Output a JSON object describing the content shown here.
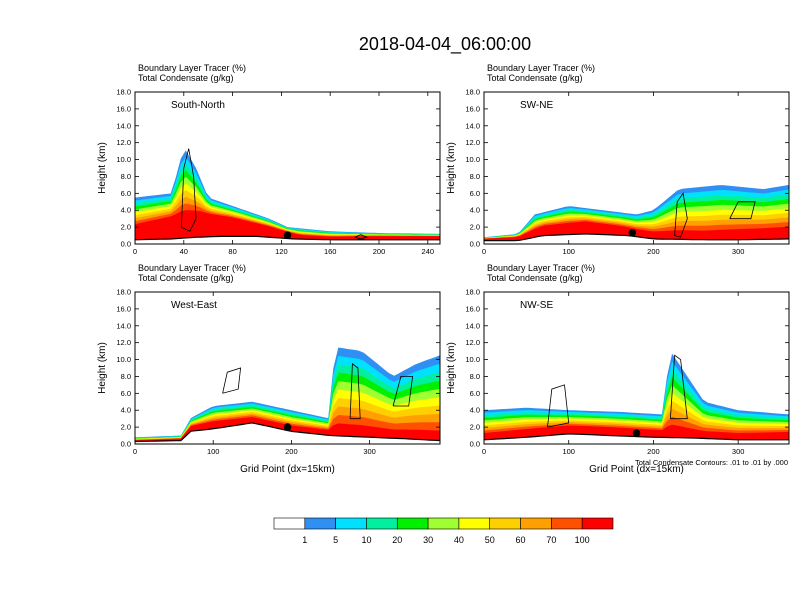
{
  "figure": {
    "title": "2018-04-04_06:00:00",
    "contour_note": "Total Condensate Contours: .01 to .01 by .000"
  },
  "colorbar": {
    "colors": [
      "#ffffff",
      "#2f8ff3",
      "#00e0ff",
      "#00f0a0",
      "#00f000",
      "#a0ff30",
      "#ffff00",
      "#ffd000",
      "#ffa000",
      "#ff5000",
      "#ff0000"
    ],
    "labels": [
      "1",
      "5",
      "10",
      "20",
      "30",
      "40",
      "50",
      "60",
      "70",
      "100"
    ]
  },
  "chart_data": [
    {
      "type": "heatmap",
      "name": "South-North",
      "label_line1": "Boundary Layer Tracer   (%)",
      "label_line2": "Total Condensate   (g/kg)",
      "ylabel": "Height (km)",
      "xlabel": "",
      "xlim": [
        0,
        250
      ],
      "ylim": [
        0,
        18
      ],
      "xticks": [
        0,
        40,
        80,
        120,
        160,
        200,
        240
      ],
      "yticks": [
        "0.0",
        "2.0",
        "4.0",
        "6.0",
        "8.0",
        "10.0",
        "12.0",
        "14.0",
        "16.0",
        "18.0"
      ],
      "marker_x": 125,
      "terrain": [
        [
          0,
          0.5
        ],
        [
          30,
          0.6
        ],
        [
          50,
          0.8
        ],
        [
          70,
          0.9
        ],
        [
          100,
          0.9
        ],
        [
          130,
          0.6
        ],
        [
          160,
          0.5
        ],
        [
          200,
          0.5
        ],
        [
          250,
          0.5
        ]
      ],
      "plume_base": [
        [
          0,
          2.0
        ],
        [
          30,
          3.0
        ],
        [
          55,
          3.5
        ],
        [
          80,
          3.0
        ],
        [
          110,
          2.0
        ],
        [
          135,
          1.0
        ],
        [
          160,
          0.8
        ],
        [
          200,
          0.9
        ],
        [
          250,
          0.9
        ]
      ],
      "plume_top": [
        [
          0,
          5.5
        ],
        [
          30,
          6.0
        ],
        [
          40,
          11.5
        ],
        [
          50,
          9.0
        ],
        [
          60,
          5.5
        ],
        [
          80,
          4.5
        ],
        [
          110,
          3.0
        ],
        [
          125,
          2.0
        ],
        [
          160,
          1.5
        ],
        [
          200,
          1.3
        ],
        [
          250,
          1.2
        ]
      ],
      "contours": [
        [
          [
            38,
            2
          ],
          [
            40,
            9
          ],
          [
            44,
            11.3
          ],
          [
            48,
            8
          ],
          [
            50,
            3
          ],
          [
            45,
            1.5
          ],
          [
            38,
            2
          ]
        ],
        [
          [
            180,
            0.8
          ],
          [
            185,
            1.1
          ],
          [
            190,
            0.8
          ],
          [
            185,
            0.6
          ],
          [
            180,
            0.8
          ]
        ]
      ]
    },
    {
      "type": "heatmap",
      "name": "SW-NE",
      "label_line1": "Boundary Layer Tracer   (%)",
      "label_line2": "Total Condensate   (g/kg)",
      "ylabel": "Height (km)",
      "xlabel": "",
      "xlim": [
        0,
        360
      ],
      "ylim": [
        0,
        18
      ],
      "xticks": [
        0,
        100,
        200,
        300
      ],
      "yticks": [
        "0.0",
        "2.0",
        "4.0",
        "6.0",
        "8.0",
        "10.0",
        "12.0",
        "14.0",
        "16.0",
        "18.0"
      ],
      "marker_x": 175,
      "terrain": [
        [
          0,
          0.4
        ],
        [
          40,
          0.4
        ],
        [
          70,
          1.0
        ],
        [
          120,
          1.2
        ],
        [
          170,
          1.0
        ],
        [
          200,
          0.6
        ],
        [
          260,
          0.5
        ],
        [
          300,
          0.5
        ],
        [
          360,
          0.6
        ]
      ],
      "plume_base": [
        [
          0,
          0.6
        ],
        [
          40,
          0.8
        ],
        [
          70,
          2.0
        ],
        [
          120,
          2.5
        ],
        [
          160,
          2.0
        ],
        [
          200,
          1.2
        ],
        [
          260,
          1.0
        ],
        [
          300,
          1.2
        ],
        [
          360,
          1.5
        ]
      ],
      "plume_top": [
        [
          0,
          0.8
        ],
        [
          40,
          1.2
        ],
        [
          60,
          3.5
        ],
        [
          100,
          4.5
        ],
        [
          140,
          4.0
        ],
        [
          180,
          3.5
        ],
        [
          200,
          4.0
        ],
        [
          230,
          6.5
        ],
        [
          280,
          7.0
        ],
        [
          330,
          6.5
        ],
        [
          360,
          7.0
        ]
      ],
      "contours": [
        [
          [
            225,
            1.0
          ],
          [
            228,
            5.0
          ],
          [
            235,
            6.0
          ],
          [
            240,
            3.0
          ],
          [
            232,
            0.8
          ],
          [
            225,
            1.0
          ]
        ],
        [
          [
            290,
            3.0
          ],
          [
            300,
            5.0
          ],
          [
            320,
            5.0
          ],
          [
            315,
            3.0
          ],
          [
            290,
            3.0
          ]
        ]
      ]
    },
    {
      "type": "heatmap",
      "name": "West-East",
      "label_line1": "Boundary Layer Tracer   (%)",
      "label_line2": "Total Condensate   (g/kg)",
      "ylabel": "Height (km)",
      "xlabel": "Grid Point (dx=15km)",
      "xlim": [
        0,
        390
      ],
      "ylim": [
        0,
        18
      ],
      "xticks": [
        0,
        100,
        200,
        300
      ],
      "yticks": [
        "0.0",
        "2.0",
        "4.0",
        "6.0",
        "8.0",
        "10.0",
        "12.0",
        "14.0",
        "16.0",
        "18.0"
      ],
      "marker_x": 195,
      "terrain": [
        [
          0,
          0.3
        ],
        [
          60,
          0.4
        ],
        [
          70,
          1.5
        ],
        [
          100,
          1.8
        ],
        [
          150,
          2.5
        ],
        [
          200,
          1.5
        ],
        [
          250,
          1.0
        ],
        [
          300,
          0.8
        ],
        [
          350,
          0.6
        ],
        [
          390,
          0.4
        ]
      ],
      "plume_base": [
        [
          0,
          0.4
        ],
        [
          60,
          0.6
        ],
        [
          70,
          2.0
        ],
        [
          100,
          2.5
        ],
        [
          150,
          3.0
        ],
        [
          200,
          2.0
        ],
        [
          250,
          1.5
        ],
        [
          300,
          1.2
        ],
        [
          350,
          0.9
        ],
        [
          390,
          0.6
        ]
      ],
      "plume_top": [
        [
          0,
          0.8
        ],
        [
          60,
          1.0
        ],
        [
          70,
          3.0
        ],
        [
          100,
          4.5
        ],
        [
          150,
          5.0
        ],
        [
          200,
          4.0
        ],
        [
          250,
          3.0
        ],
        [
          255,
          11.5
        ],
        [
          290,
          11.0
        ],
        [
          330,
          8.0
        ],
        [
          360,
          9.5
        ],
        [
          390,
          10.5
        ]
      ],
      "contours": [
        [
          [
            112,
            6.0
          ],
          [
            118,
            8.5
          ],
          [
            135,
            9.0
          ],
          [
            132,
            6.5
          ],
          [
            112,
            6.0
          ]
        ],
        [
          [
            275,
            3.0
          ],
          [
            278,
            9.5
          ],
          [
            285,
            9.0
          ],
          [
            288,
            3.0
          ],
          [
            275,
            3.0
          ]
        ],
        [
          [
            330,
            4.5
          ],
          [
            340,
            8.0
          ],
          [
            355,
            8.0
          ],
          [
            350,
            4.5
          ],
          [
            330,
            4.5
          ]
        ]
      ]
    },
    {
      "type": "heatmap",
      "name": "NW-SE",
      "label_line1": "Boundary Layer Tracer   (%)",
      "label_line2": "Total Condensate   (g/kg)",
      "ylabel": "Height (km)",
      "xlabel": "Grid Point (dx=15km)",
      "xlim": [
        0,
        360
      ],
      "ylim": [
        0,
        18
      ],
      "xticks": [
        0,
        100,
        200,
        300
      ],
      "yticks": [
        "0.0",
        "2.0",
        "4.0",
        "6.0",
        "8.0",
        "10.0",
        "12.0",
        "14.0",
        "16.0",
        "18.0"
      ],
      "marker_x": 180,
      "terrain": [
        [
          0,
          0.5
        ],
        [
          50,
          0.8
        ],
        [
          100,
          1.2
        ],
        [
          150,
          1.0
        ],
        [
          200,
          0.8
        ],
        [
          250,
          0.7
        ],
        [
          300,
          0.5
        ],
        [
          360,
          0.5
        ]
      ],
      "plume_base": [
        [
          0,
          1.0
        ],
        [
          50,
          1.5
        ],
        [
          100,
          2.0
        ],
        [
          150,
          1.8
        ],
        [
          200,
          1.5
        ],
        [
          250,
          1.2
        ],
        [
          300,
          1.0
        ],
        [
          360,
          1.2
        ]
      ],
      "plume_top": [
        [
          0,
          4.0
        ],
        [
          50,
          4.3
        ],
        [
          100,
          4.0
        ],
        [
          160,
          3.8
        ],
        [
          210,
          3.5
        ],
        [
          220,
          11.0
        ],
        [
          240,
          8.0
        ],
        [
          260,
          5.0
        ],
        [
          300,
          4.0
        ],
        [
          360,
          3.5
        ]
      ],
      "contours": [
        [
          [
            75,
            2.0
          ],
          [
            80,
            6.5
          ],
          [
            95,
            7.0
          ],
          [
            100,
            2.5
          ],
          [
            75,
            2.0
          ]
        ],
        [
          [
            220,
            3.0
          ],
          [
            225,
            10.5
          ],
          [
            232,
            10.0
          ],
          [
            240,
            3.0
          ],
          [
            220,
            3.0
          ]
        ]
      ]
    }
  ]
}
